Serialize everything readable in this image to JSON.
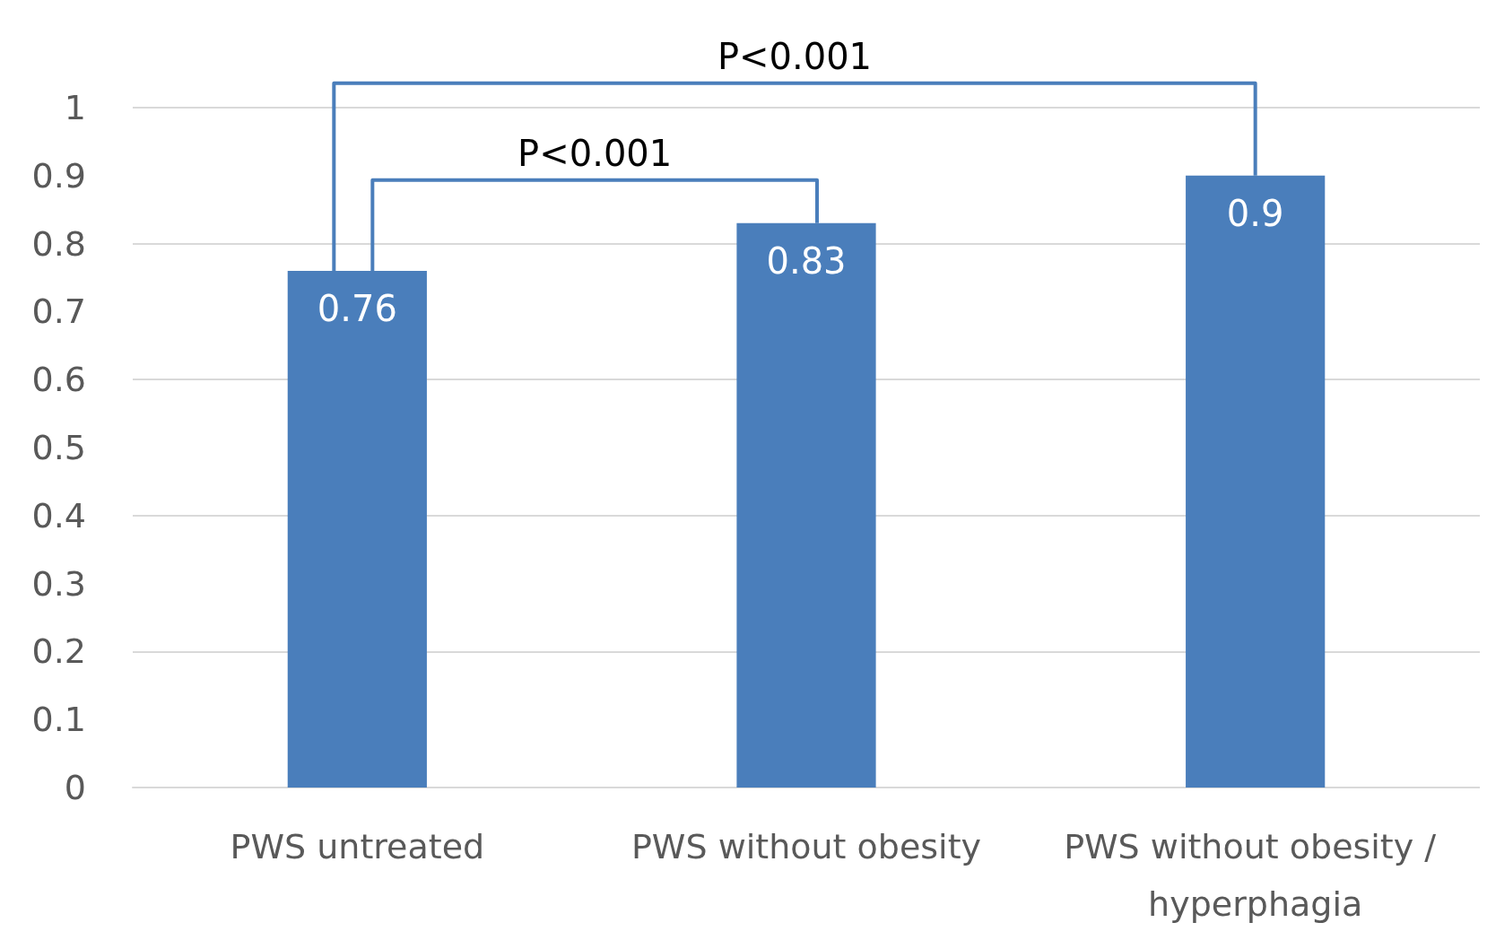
{
  "chart_data": {
    "type": "bar",
    "categories": [
      "PWS untreated",
      "PWS without obesity",
      "PWS without obesity / hyperphagia"
    ],
    "values": [
      0.76,
      0.83,
      0.9
    ],
    "color": "#4a7ebb",
    "ylim": [
      0,
      1
    ],
    "yticks": [
      0,
      0.1,
      0.2,
      0.3,
      0.4,
      0.5,
      0.6,
      0.7,
      0.8,
      0.9,
      1
    ],
    "grid": "y",
    "data_labels": true,
    "annotations": [
      "P<0.001",
      "P<0.001"
    ]
  }
}
